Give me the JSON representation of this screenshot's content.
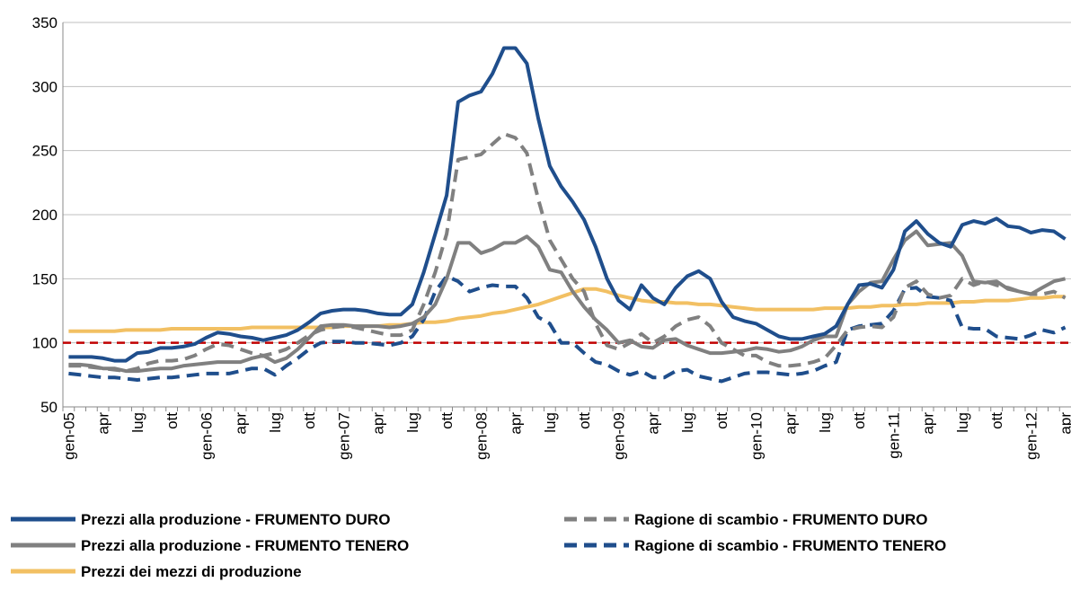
{
  "chart_data": {
    "type": "line",
    "categories": [
      "gen-05",
      null,
      null,
      "apr",
      null,
      null,
      "lug",
      null,
      null,
      "ott",
      null,
      null,
      "gen-06",
      null,
      null,
      "apr",
      null,
      null,
      "lug",
      null,
      null,
      "ott",
      null,
      null,
      "gen-07",
      null,
      null,
      "apr",
      null,
      null,
      "lug",
      null,
      null,
      "ott",
      null,
      null,
      "gen-08",
      null,
      null,
      "apr",
      null,
      null,
      "lug",
      null,
      null,
      "ott",
      null,
      null,
      "gen-09",
      null,
      null,
      "apr",
      null,
      null,
      "lug",
      null,
      null,
      "ott",
      null,
      null,
      "gen-10",
      null,
      null,
      "apr",
      null,
      null,
      "lug",
      null,
      null,
      "ott",
      null,
      null,
      "gen-11",
      null,
      null,
      "apr",
      null,
      null,
      "lug",
      null,
      null,
      "ott",
      null,
      null,
      "gen-12",
      null,
      null,
      "apr"
    ],
    "series": [
      {
        "name": "Prezzi alla produzione - FRUMENTO DURO",
        "color": "#1f4e8c",
        "dashed": false,
        "values": [
          89,
          89,
          89,
          88,
          86,
          86,
          92,
          93,
          96,
          96,
          97,
          99,
          104,
          108,
          107,
          105,
          104,
          102,
          104,
          106,
          110,
          116,
          123,
          125,
          126,
          126,
          125,
          123,
          122,
          122,
          130,
          155,
          185,
          215,
          288,
          293,
          296,
          310,
          330,
          330,
          318,
          275,
          238,
          222,
          210,
          196,
          175,
          150,
          133,
          126,
          145,
          135,
          130,
          143,
          152,
          156,
          150,
          132,
          120,
          117,
          115,
          110,
          105,
          103,
          103,
          105,
          107,
          113,
          130,
          145,
          146,
          143,
          157,
          187,
          195,
          185,
          178,
          175,
          192,
          195,
          193,
          197,
          191,
          190,
          186,
          188,
          187,
          181
        ]
      },
      {
        "name": "Ragione di scambio - FRUMENTO DURO",
        "color": "#808080",
        "dashed": true,
        "values": [
          82,
          82,
          81,
          80,
          79,
          78,
          80,
          84,
          86,
          86,
          87,
          90,
          95,
          99,
          98,
          95,
          92,
          90,
          92,
          95,
          100,
          106,
          110,
          112,
          113,
          112,
          110,
          108,
          106,
          106,
          110,
          130,
          155,
          185,
          243,
          245,
          247,
          255,
          263,
          260,
          248,
          212,
          180,
          165,
          150,
          140,
          115,
          98,
          95,
          100,
          107,
          100,
          105,
          113,
          118,
          120,
          113,
          100,
          95,
          90,
          90,
          85,
          82,
          82,
          83,
          85,
          88,
          98,
          110,
          112,
          113,
          112,
          120,
          143,
          148,
          138,
          135,
          137,
          150,
          145,
          148,
          145,
          143,
          140,
          138,
          138,
          140,
          135
        ]
      },
      {
        "name": "Prezzi alla produzione - FRUMENTO TENERO",
        "color": "#808080",
        "dashed": false,
        "values": [
          83,
          83,
          82,
          80,
          80,
          78,
          78,
          79,
          80,
          80,
          82,
          83,
          84,
          85,
          85,
          85,
          88,
          90,
          85,
          88,
          95,
          104,
          113,
          114,
          114,
          113,
          113,
          113,
          112,
          113,
          115,
          120,
          130,
          150,
          178,
          178,
          170,
          173,
          178,
          178,
          183,
          175,
          157,
          155,
          140,
          128,
          118,
          110,
          100,
          102,
          97,
          96,
          102,
          103,
          98,
          95,
          92,
          92,
          93,
          94,
          96,
          95,
          93,
          94,
          97,
          102,
          105,
          105,
          130,
          140,
          147,
          148,
          165,
          180,
          187,
          176,
          177,
          178,
          168,
          148,
          147,
          148,
          142,
          140,
          138,
          143,
          148,
          150
        ]
      },
      {
        "name": "Ragione di scambio - FRUMENTO TENERO",
        "color": "#1f4e8c",
        "dashed": true,
        "values": [
          76,
          75,
          74,
          73,
          73,
          72,
          71,
          72,
          73,
          73,
          74,
          75,
          76,
          76,
          76,
          78,
          80,
          80,
          75,
          82,
          88,
          95,
          100,
          101,
          101,
          100,
          100,
          99,
          98,
          100,
          105,
          118,
          140,
          152,
          148,
          140,
          143,
          145,
          144,
          144,
          135,
          120,
          115,
          100,
          100,
          92,
          85,
          83,
          78,
          75,
          78,
          73,
          73,
          78,
          79,
          74,
          72,
          70,
          73,
          76,
          77,
          77,
          76,
          75,
          76,
          78,
          82,
          85,
          110,
          113,
          114,
          115,
          125,
          142,
          143,
          136,
          135,
          133,
          112,
          111,
          111,
          105,
          104,
          103,
          106,
          110,
          108,
          112
        ]
      },
      {
        "name": "Prezzi dei mezzi di produzione",
        "color": "#f2c063",
        "dashed": false,
        "values": [
          109,
          109,
          109,
          109,
          109,
          110,
          110,
          110,
          110,
          111,
          111,
          111,
          111,
          111,
          111,
          111,
          112,
          112,
          112,
          112,
          112,
          112,
          112,
          112,
          113,
          113,
          113,
          113,
          114,
          114,
          115,
          116,
          116,
          117,
          119,
          120,
          121,
          123,
          124,
          126,
          128,
          130,
          133,
          136,
          139,
          142,
          142,
          140,
          137,
          135,
          133,
          132,
          132,
          131,
          131,
          130,
          130,
          129,
          128,
          127,
          126,
          126,
          126,
          126,
          126,
          126,
          127,
          127,
          127,
          128,
          128,
          129,
          129,
          130,
          130,
          131,
          131,
          131,
          132,
          132,
          133,
          133,
          133,
          134,
          135,
          135,
          136,
          136
        ]
      }
    ],
    "ylim": [
      50,
      350
    ],
    "yticks": [
      50,
      100,
      150,
      200,
      250,
      300,
      350
    ],
    "grid": true,
    "reference_line": {
      "value": 100,
      "color": "#c00000"
    },
    "legend": "bottom"
  }
}
